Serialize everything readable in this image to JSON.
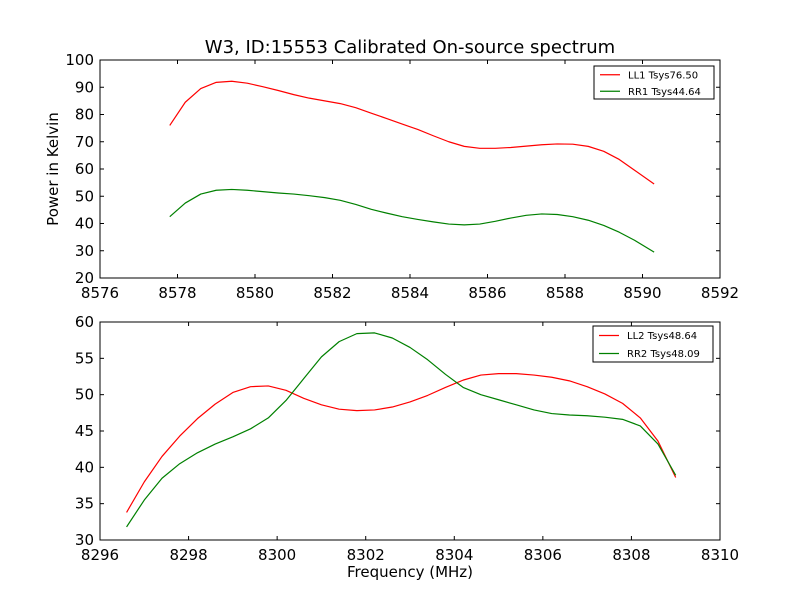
{
  "title": "W3, ID:15553 Calibrated On-source spectrum",
  "chart_data": [
    {
      "type": "line",
      "xlabel": "",
      "ylabel": "Power in Kelvin",
      "xlim": [
        8576,
        8592
      ],
      "ylim": [
        20,
        100
      ],
      "xticks": [
        "8576",
        "8578",
        "8580",
        "8582",
        "8584",
        "8586",
        "8588",
        "8590",
        "8592"
      ],
      "yticks": [
        "20",
        "30",
        "40",
        "50",
        "60",
        "70",
        "80",
        "90",
        "100"
      ],
      "legend_position": "top-right",
      "series": [
        {
          "name": "LL1 Tsys76.50",
          "color": "#ff0000",
          "x": [
            8577.8,
            8578.2,
            8578.6,
            8579.0,
            8579.4,
            8579.8,
            8580.2,
            8580.6,
            8581.0,
            8581.4,
            8581.8,
            8582.2,
            8582.6,
            8583.0,
            8583.4,
            8583.8,
            8584.2,
            8584.6,
            8585.0,
            8585.4,
            8585.8,
            8586.2,
            8586.6,
            8587.0,
            8587.4,
            8587.8,
            8588.2,
            8588.6,
            8589.0,
            8589.4,
            8589.8,
            8590.3
          ],
          "y": [
            76,
            84.5,
            89.5,
            91.8,
            92.2,
            91.5,
            90.2,
            88.8,
            87.3,
            86.0,
            85.0,
            84.0,
            82.5,
            80.5,
            78.5,
            76.5,
            74.5,
            72.2,
            70.0,
            68.3,
            67.6,
            67.6,
            67.9,
            68.4,
            68.9,
            69.2,
            69.1,
            68.3,
            66.5,
            63.5,
            59.5,
            54.5
          ]
        },
        {
          "name": "RR1 Tsys44.64",
          "color": "#008000",
          "x": [
            8577.8,
            8578.2,
            8578.6,
            8579.0,
            8579.4,
            8579.8,
            8580.2,
            8580.6,
            8581.0,
            8581.4,
            8581.8,
            8582.2,
            8582.6,
            8583.0,
            8583.4,
            8583.8,
            8584.2,
            8584.6,
            8585.0,
            8585.4,
            8585.8,
            8586.2,
            8586.6,
            8587.0,
            8587.4,
            8587.8,
            8588.2,
            8588.6,
            8589.0,
            8589.4,
            8589.8,
            8590.3
          ],
          "y": [
            42.5,
            47.5,
            50.8,
            52.2,
            52.5,
            52.2,
            51.7,
            51.2,
            50.8,
            50.2,
            49.5,
            48.5,
            47.0,
            45.2,
            43.8,
            42.5,
            41.5,
            40.6,
            39.8,
            39.5,
            39.8,
            40.8,
            42.0,
            43.0,
            43.5,
            43.3,
            42.5,
            41.2,
            39.3,
            36.8,
            33.8,
            29.5
          ]
        }
      ]
    },
    {
      "type": "line",
      "xlabel": "Frequency (MHz)",
      "ylabel": "",
      "xlim": [
        8296,
        8310
      ],
      "ylim": [
        30,
        60
      ],
      "xticks": [
        "8296",
        "8298",
        "8300",
        "8302",
        "8304",
        "8306",
        "8308",
        "8310"
      ],
      "yticks": [
        "30",
        "35",
        "40",
        "45",
        "50",
        "55",
        "60"
      ],
      "legend_position": "top-right",
      "series": [
        {
          "name": "LL2 Tsys48.64",
          "color": "#ff0000",
          "x": [
            8296.6,
            8297.0,
            8297.4,
            8297.8,
            8298.2,
            8298.6,
            8299.0,
            8299.4,
            8299.8,
            8300.2,
            8300.6,
            8301.0,
            8301.4,
            8301.8,
            8302.2,
            8302.6,
            8303.0,
            8303.4,
            8303.8,
            8304.2,
            8304.6,
            8305.0,
            8305.4,
            8305.8,
            8306.2,
            8306.6,
            8307.0,
            8307.4,
            8307.8,
            8308.2,
            8308.6,
            8309.0
          ],
          "y": [
            33.8,
            38.0,
            41.5,
            44.3,
            46.7,
            48.7,
            50.3,
            51.1,
            51.2,
            50.6,
            49.5,
            48.6,
            48.0,
            47.8,
            47.9,
            48.3,
            49.0,
            49.9,
            51.0,
            52.0,
            52.7,
            52.9,
            52.9,
            52.7,
            52.4,
            51.9,
            51.1,
            50.1,
            48.8,
            46.8,
            43.6,
            38.6
          ]
        },
        {
          "name": "RR2 Tsys48.09",
          "color": "#008000",
          "x": [
            8296.6,
            8297.0,
            8297.4,
            8297.8,
            8298.2,
            8298.6,
            8299.0,
            8299.4,
            8299.8,
            8300.2,
            8300.6,
            8301.0,
            8301.4,
            8301.8,
            8302.2,
            8302.6,
            8303.0,
            8303.4,
            8303.8,
            8304.2,
            8304.6,
            8305.0,
            8305.4,
            8305.8,
            8306.2,
            8306.6,
            8307.0,
            8307.4,
            8307.8,
            8308.2,
            8308.6,
            8309.0
          ],
          "y": [
            31.8,
            35.5,
            38.5,
            40.5,
            42.0,
            43.2,
            44.2,
            45.3,
            46.8,
            49.2,
            52.2,
            55.2,
            57.3,
            58.4,
            58.5,
            57.8,
            56.5,
            54.8,
            52.8,
            51.0,
            50.0,
            49.3,
            48.6,
            47.9,
            47.4,
            47.2,
            47.1,
            46.9,
            46.6,
            45.7,
            43.2,
            38.9
          ]
        }
      ]
    }
  ]
}
